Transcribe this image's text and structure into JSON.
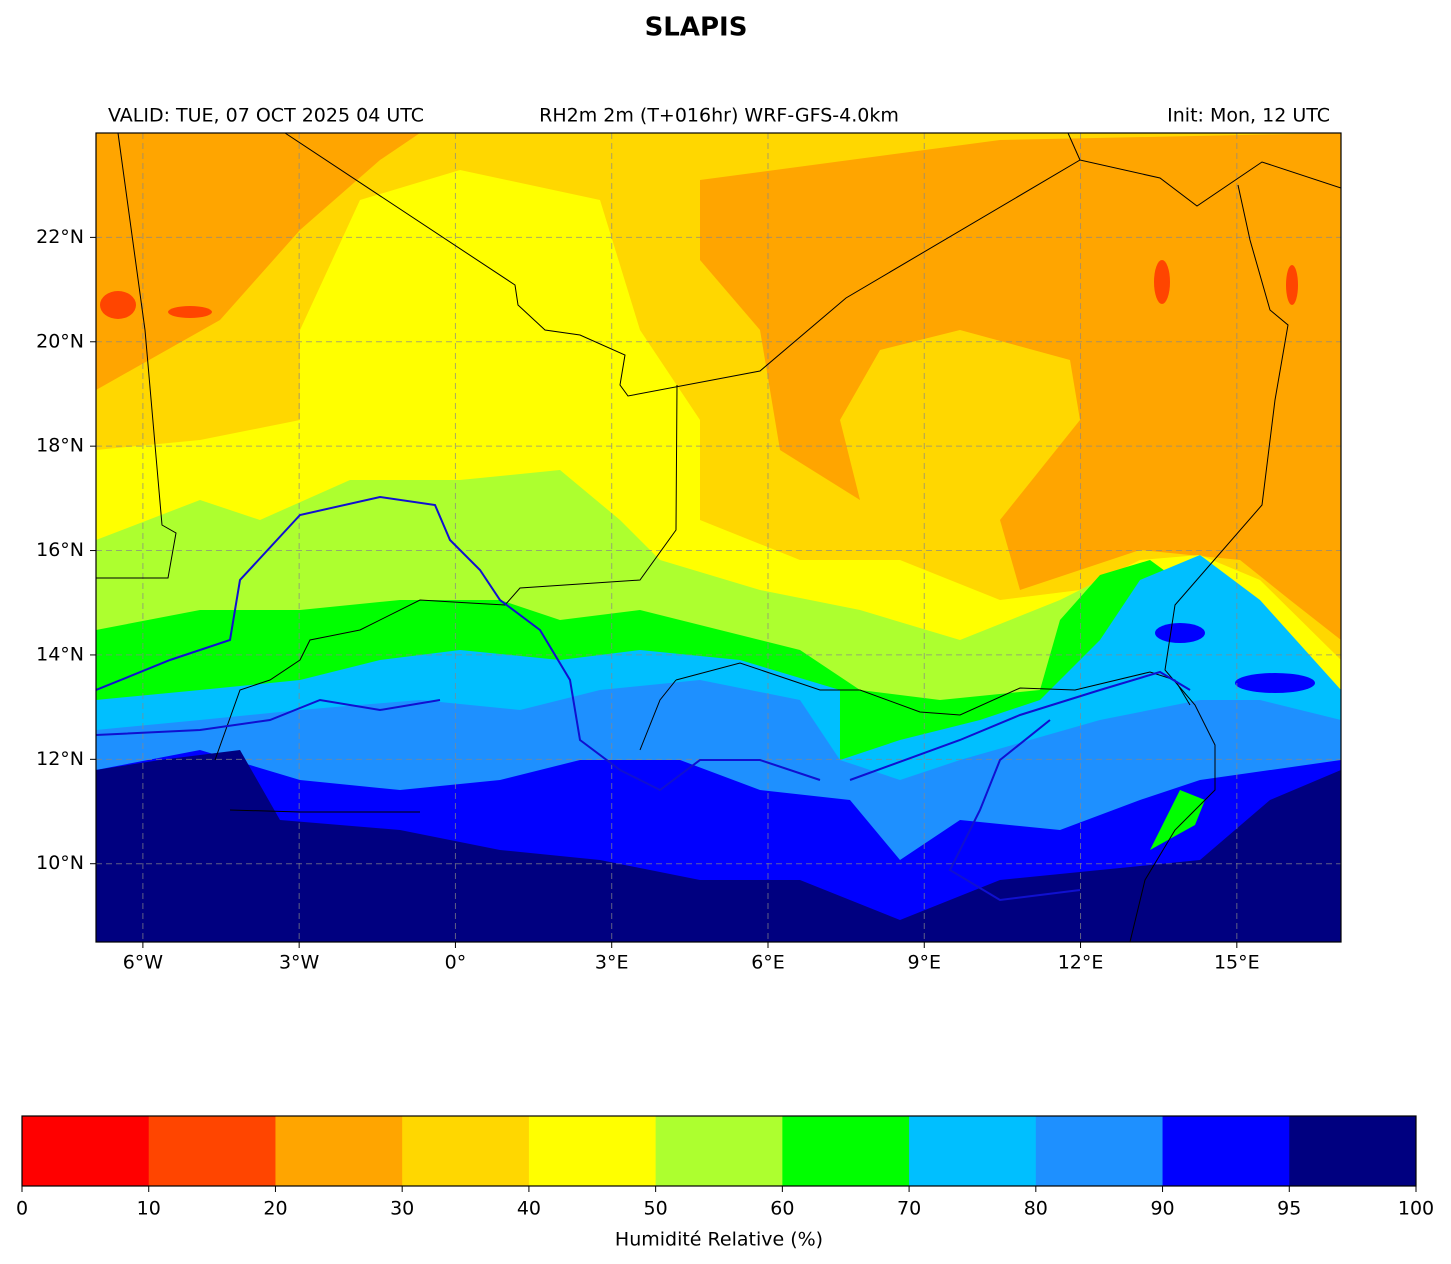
{
  "title": "SLAPIS",
  "header": {
    "left": "VALID: TUE, 07 OCT 2025 04 UTC",
    "center": "RH2m 2m (T+016hr) WRF-GFS-4.0km",
    "right": "Init: Mon, 12 UTC"
  },
  "map": {
    "xlim": [
      -6.9,
      17
    ],
    "ylim": [
      8.5,
      24
    ],
    "grid": true,
    "xticks": [
      {
        "value": -6,
        "label": "6°W"
      },
      {
        "value": -3,
        "label": "3°W"
      },
      {
        "value": 0,
        "label": "0°"
      },
      {
        "value": 3,
        "label": "3°E"
      },
      {
        "value": 6,
        "label": "6°E"
      },
      {
        "value": 9,
        "label": "9°E"
      },
      {
        "value": 12,
        "label": "12°E"
      },
      {
        "value": 15,
        "label": "15°E"
      }
    ],
    "yticks": [
      {
        "value": 10,
        "label": "10°N"
      },
      {
        "value": 12,
        "label": "12°N"
      },
      {
        "value": 14,
        "label": "14°N"
      },
      {
        "value": 16,
        "label": "16°N"
      },
      {
        "value": 18,
        "label": "18°N"
      },
      {
        "value": 20,
        "label": "20°N"
      },
      {
        "value": 22,
        "label": "22°N"
      }
    ]
  },
  "colorbar": {
    "levels": [
      0,
      10,
      20,
      30,
      40,
      50,
      60,
      70,
      80,
      90,
      95,
      100
    ],
    "colors": [
      "#ff0000",
      "#ff4500",
      "#ffa500",
      "#ffd700",
      "#ffff00",
      "#adff2f",
      "#00ff00",
      "#00bfff",
      "#1e90ff",
      "#0000ff",
      "#000080"
    ],
    "label": "Humidité Relative (%)"
  }
}
